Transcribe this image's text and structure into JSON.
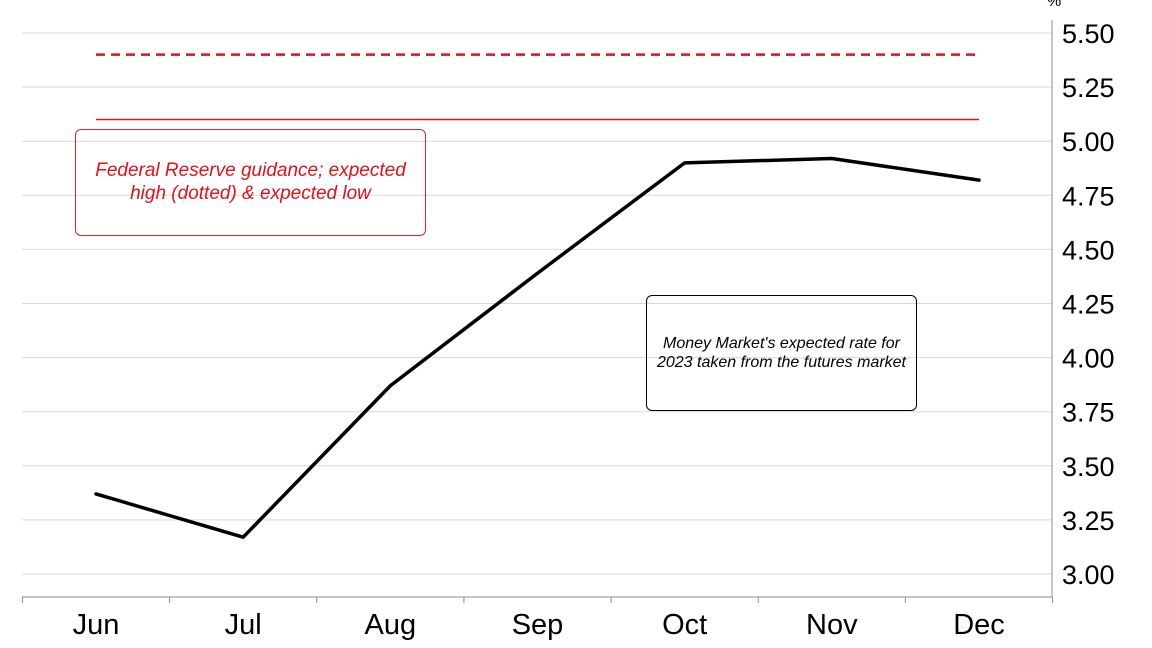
{
  "chart_data": {
    "type": "line",
    "title": "",
    "xlabel": "",
    "ylabel": "",
    "y_unit_label": "%",
    "categories": [
      "Jun",
      "Jul",
      "Aug",
      "Sep",
      "Oct",
      "Nov",
      "Dec"
    ],
    "series": [
      {
        "values": [
          3.37,
          3.17,
          3.87,
          4.39,
          4.9,
          4.92,
          4.82
        ],
        "color": "#000000",
        "style": "solid"
      }
    ],
    "reference_lines": [
      {
        "value": 5.4,
        "color": "#e0121b",
        "style": "dashed"
      },
      {
        "value": 5.1,
        "color": "#e0121b",
        "style": "solid"
      }
    ],
    "ylim": [
      2.9,
      5.6
    ],
    "yticks": [
      "3.00",
      "3.25",
      "3.50",
      "3.75",
      "4.00",
      "4.25",
      "4.50",
      "4.75",
      "5.00",
      "5.25",
      "5.50"
    ],
    "grid": true,
    "y_axis_side": "right",
    "annotations": [
      {
        "text": "Federal Reserve guidance; expected high (dotted) & expected low",
        "color": "#e0121b"
      },
      {
        "text": "Money Market's expected rate for 2023 taken from the futures market",
        "color": "#000000"
      }
    ]
  }
}
